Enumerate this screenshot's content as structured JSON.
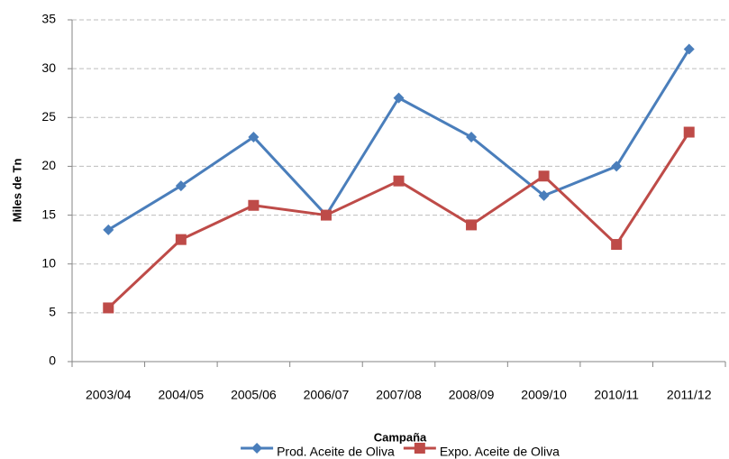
{
  "chart_data": {
    "type": "line",
    "x_label": "Campaña",
    "y_label": "Miles de Tn",
    "categories": [
      "2003/04",
      "2004/05",
      "2005/06",
      "2006/07",
      "2007/08",
      "2008/09",
      "2009/10",
      "2010/11",
      "2011/12"
    ],
    "series": [
      {
        "name": "Prod. Aceite de Oliva",
        "color": "#4a7ebb",
        "marker": "diamond",
        "values": [
          13.5,
          18,
          23,
          15,
          27,
          23,
          17,
          20,
          32
        ]
      },
      {
        "name": "Expo. Aceite de Oliva",
        "color": "#be4b48",
        "marker": "square",
        "values": [
          5.5,
          12.5,
          16,
          15,
          18.5,
          14,
          19,
          12,
          23.5
        ]
      }
    ],
    "ylim": [
      0,
      35
    ],
    "yticks": [
      0,
      5,
      10,
      15,
      20,
      25,
      30,
      35
    ],
    "grid": true,
    "legend": "bottom"
  }
}
